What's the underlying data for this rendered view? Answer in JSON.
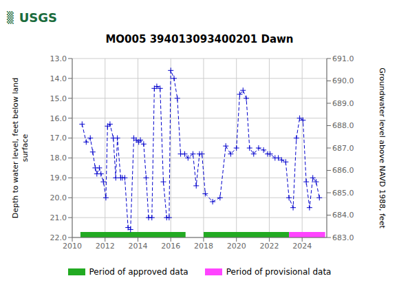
{
  "chart_data": {
    "type": "line",
    "title": "MO005 394013093400201 Dawn",
    "annotations": [
      {
        "text": "▒",
        "color": "#1a6b3c"
      },
      {
        "text": "USGS",
        "color": "#1a6b3c"
      }
    ],
    "ylabel": "Depth to water level, feet below land\nsurface",
    "y2label": "Groundwater level above NAVD 1988, feet",
    "x": [
      2010.6,
      2010.85,
      2011.1,
      2011.25,
      2011.4,
      2011.5,
      2011.65,
      2011.75,
      2011.9,
      2012.05,
      2012.15,
      2012.3,
      2012.5,
      2012.65,
      2012.75,
      2012.95,
      2013.05,
      2013.2,
      2013.4,
      2013.55,
      2013.75,
      2013.9,
      2014.05,
      2014.15,
      2014.35,
      2014.5,
      2014.65,
      2014.85,
      2015.0,
      2015.15,
      2015.35,
      2015.55,
      2015.75,
      2015.9,
      2016.0,
      2016.2,
      2016.4,
      2016.6,
      2016.85,
      2017.05,
      2017.35,
      2017.55,
      2017.75,
      2017.9,
      2018.1,
      2018.55,
      2019.0,
      2019.35,
      2019.65,
      2020.0,
      2020.2,
      2020.4,
      2020.6,
      2020.8,
      2021.05,
      2021.35,
      2021.65,
      2021.9,
      2022.05,
      2022.35,
      2022.55,
      2022.75,
      2023.0,
      2023.2,
      2023.45,
      2023.65,
      2023.85,
      2024.05,
      2024.25,
      2024.45,
      2024.65,
      2024.85,
      2025.05
    ],
    "series": [
      {
        "values": [
          16.3,
          17.2,
          17.0,
          17.7,
          18.5,
          18.8,
          18.5,
          18.8,
          19.2,
          20.0,
          16.4,
          16.3,
          17.0,
          19.0,
          17.0,
          19.0,
          19.0,
          19.0,
          21.5,
          21.6,
          17.0,
          17.1,
          17.2,
          17.1,
          17.3,
          19.0,
          21.0,
          21.0,
          14.5,
          14.4,
          14.5,
          19.2,
          21.0,
          21.0,
          13.6,
          14.0,
          15.0,
          17.8,
          17.8,
          18.0,
          17.8,
          19.4,
          17.8,
          17.8,
          19.8,
          20.2,
          20.0,
          17.4,
          17.8,
          17.5,
          14.8,
          14.6,
          15.0,
          17.5,
          17.8,
          17.5,
          17.6,
          17.8,
          17.8,
          18.0,
          18.0,
          18.1,
          18.2,
          20.0,
          20.5,
          17.0,
          16.0,
          16.1,
          19.2,
          20.5,
          19.0,
          19.2,
          20.0
        ],
        "color": "#0000cc",
        "marker": "plus",
        "line_style": "dashed"
      }
    ],
    "xlim": [
      2010,
      2025.5
    ],
    "xticks": [
      2010,
      2012,
      2014,
      2016,
      2018,
      2020,
      2022,
      2024
    ],
    "ylim": [
      22.0,
      13.0
    ],
    "yticks": [
      {
        "value": 13.0,
        "label": "13.0"
      },
      {
        "value": 14.0,
        "label": "14.0"
      },
      {
        "value": 15.0,
        "label": "15.0"
      },
      {
        "value": 16.0,
        "label": "16.0"
      },
      {
        "value": 17.0,
        "label": "17.0"
      },
      {
        "value": 18.0,
        "label": "18.0"
      },
      {
        "value": 19.0,
        "label": "19.0"
      },
      {
        "value": 20.0,
        "label": "20.0"
      },
      {
        "value": 21.0,
        "label": "21.0"
      },
      {
        "value": 22.0,
        "label": "22.0"
      }
    ],
    "y2lim": [
      683.0,
      691.0
    ],
    "y2ticks": [
      {
        "value": 691.0,
        "label": "691.0"
      },
      {
        "value": 690.0,
        "label": "690.0"
      },
      {
        "value": 689.0,
        "label": "689.0"
      },
      {
        "value": 688.0,
        "label": "688.0"
      },
      {
        "value": 687.0,
        "label": "687.0"
      },
      {
        "value": 686.0,
        "label": "686.0"
      },
      {
        "value": 685.0,
        "label": "685.0"
      },
      {
        "value": 684.0,
        "label": "684.0"
      },
      {
        "value": 683.0,
        "label": "683.0"
      }
    ],
    "grid": true,
    "periods": [
      {
        "name": "Period of approved data",
        "color": "#22aa22",
        "ranges": [
          [
            2010.5,
            2016.9
          ],
          [
            2018.0,
            2023.2
          ]
        ]
      },
      {
        "name": "Period of provisional data",
        "color": "#ff44ff",
        "ranges": [
          [
            2023.2,
            2025.4
          ]
        ]
      }
    ],
    "period_y": 22.0,
    "period_half_height": 0.28,
    "legend": "bottom"
  }
}
